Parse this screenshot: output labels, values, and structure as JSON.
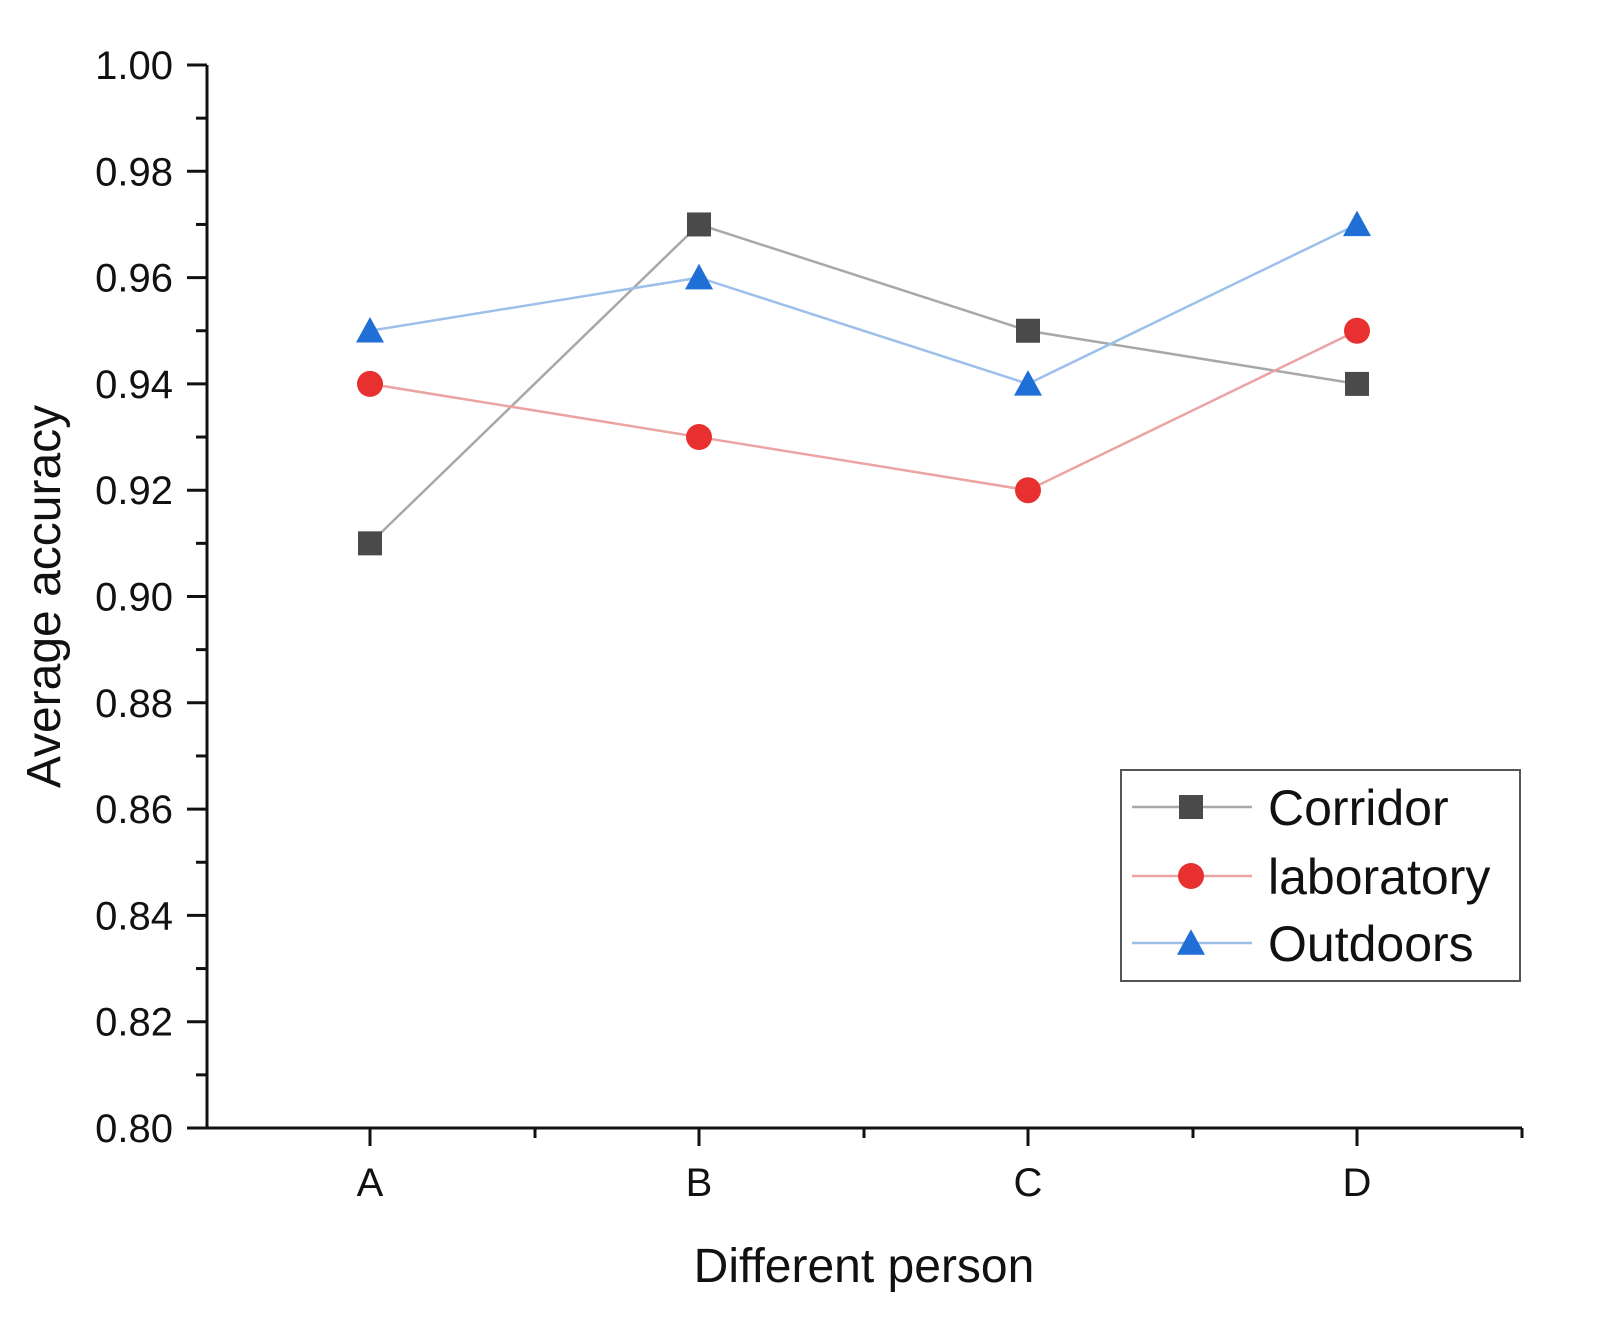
{
  "chart_data": {
    "type": "line",
    "categories": [
      "A",
      "B",
      "C",
      "D"
    ],
    "series": [
      {
        "name": "Corridor",
        "values": [
          0.91,
          0.97,
          0.95,
          0.94
        ],
        "color": "#4a4a4a",
        "line_color": "#a8a8a8",
        "marker": "square"
      },
      {
        "name": "laboratory",
        "values": [
          0.94,
          0.93,
          0.92,
          0.95
        ],
        "color": "#e83030",
        "line_color": "#eba3a3",
        "marker": "circle"
      },
      {
        "name": "Outdoors",
        "values": [
          0.95,
          0.96,
          0.94,
          0.97
        ],
        "color": "#1f6fd6",
        "line_color": "#9cc0ea",
        "marker": "triangle"
      }
    ],
    "xlabel": "Different person",
    "ylabel": "Average accuracy",
    "ylim": [
      0.8,
      1.0
    ],
    "yticks": [
      "0.80",
      "0.82",
      "0.84",
      "0.86",
      "0.88",
      "0.90",
      "0.92",
      "0.94",
      "0.96",
      "0.98",
      "1.00"
    ],
    "grid": false,
    "legend_position": "lower-right"
  }
}
